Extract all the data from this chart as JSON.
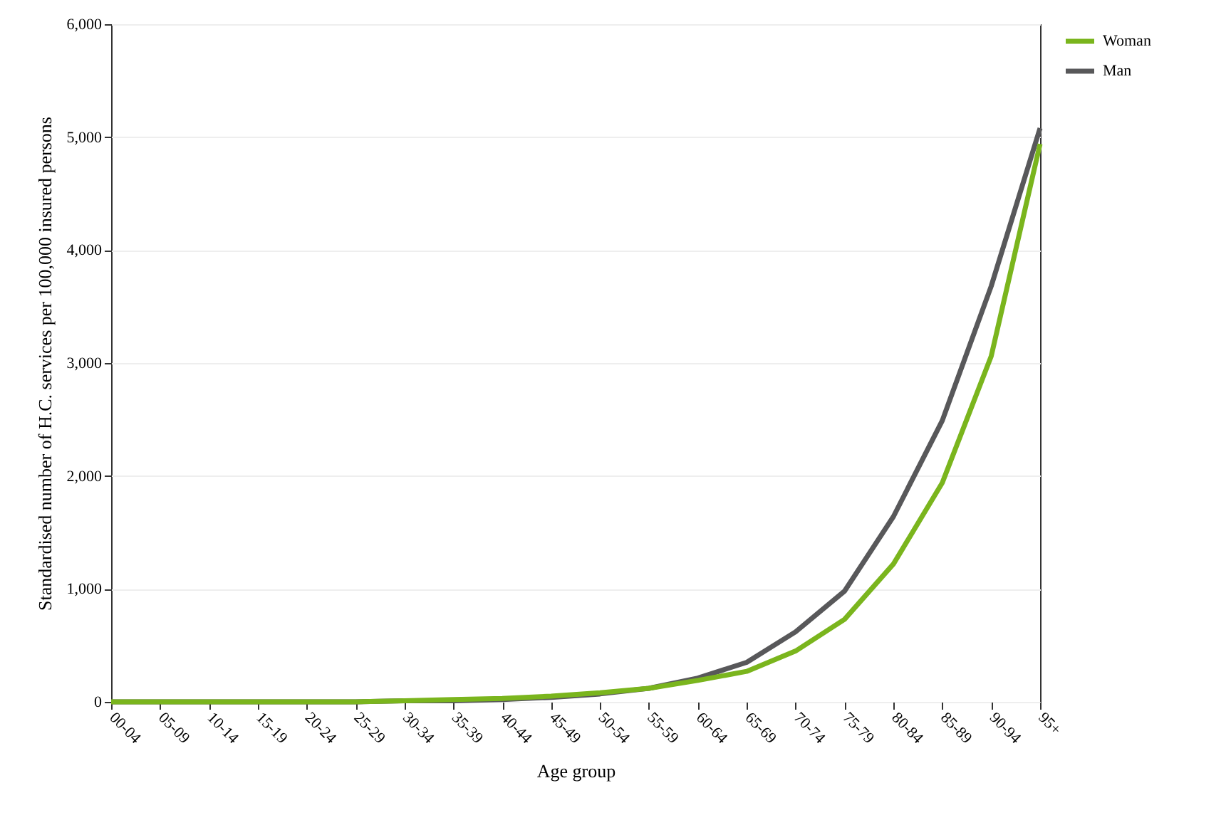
{
  "chart_data": {
    "type": "line",
    "xlabel": "Age group",
    "ylabel": "Standardised number of H.C. services per 100,000 insured persons",
    "categories": [
      "00-04",
      "05-09",
      "10-14",
      "15-19",
      "20-24",
      "25-29",
      "30-34",
      "35-39",
      "40-44",
      "45-49",
      "50-54",
      "55-59",
      "60-64",
      "65-69",
      "70-74",
      "75-79",
      "80-84",
      "85-89",
      "90-94",
      "95+"
    ],
    "series": [
      {
        "name": "Woman",
        "color": "#7ab51d",
        "values": [
          0,
          0,
          0,
          0,
          0,
          0,
          10,
          20,
          30,
          50,
          80,
          120,
          190,
          270,
          450,
          730,
          1220,
          1940,
          3060,
          4940
        ]
      },
      {
        "name": "Man",
        "color": "#58585a",
        "values": [
          0,
          0,
          0,
          0,
          0,
          0,
          10,
          10,
          20,
          40,
          70,
          120,
          210,
          350,
          620,
          980,
          1640,
          2490,
          3680,
          5080
        ]
      }
    ],
    "ylim": [
      0,
      6000
    ],
    "yticks": [
      {
        "value": 0,
        "label": "0"
      },
      {
        "value": 1000,
        "label": "1,000"
      },
      {
        "value": 2000,
        "label": "2,000"
      },
      {
        "value": 3000,
        "label": "3,000"
      },
      {
        "value": 4000,
        "label": "4,000"
      },
      {
        "value": 5000,
        "label": "5,000"
      },
      {
        "value": 6000,
        "label": "6,000"
      }
    ],
    "grid": "y",
    "legend": "right",
    "line_style": "solid",
    "marker": "none"
  }
}
